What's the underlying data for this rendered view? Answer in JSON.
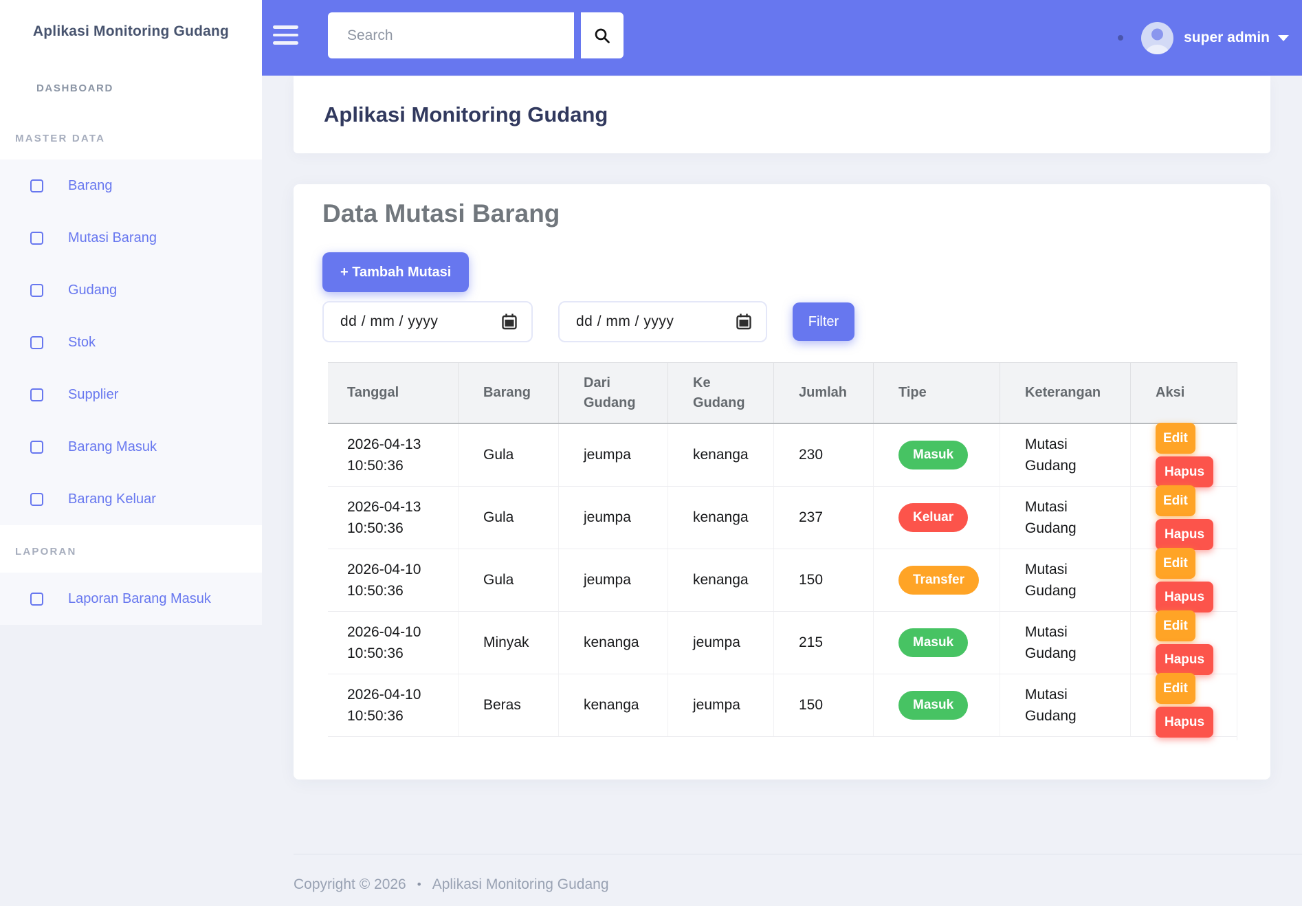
{
  "colors": {
    "primary": "#6777ef",
    "success": "#47c363",
    "danger": "#fc544b",
    "warning": "#ffa426"
  },
  "sidebar": {
    "brand": "Aplikasi Monitoring Gudang",
    "dashboard_label": "DASHBOARD",
    "sections": [
      {
        "label": "MASTER DATA",
        "items": [
          {
            "label": "Barang"
          },
          {
            "label": "Mutasi Barang"
          },
          {
            "label": "Gudang"
          },
          {
            "label": "Stok"
          },
          {
            "label": "Supplier"
          },
          {
            "label": "Barang Masuk"
          },
          {
            "label": "Barang Keluar"
          }
        ]
      },
      {
        "label": "LAPORAN",
        "items": [
          {
            "label": "Laporan Barang Masuk"
          }
        ]
      }
    ]
  },
  "topbar": {
    "search_placeholder": "Search",
    "user_name": "super admin"
  },
  "header": {
    "title": "Aplikasi Monitoring Gudang"
  },
  "main": {
    "title": "Data Mutasi Barang",
    "add_button": "+ Tambah Mutasi",
    "date_from": {
      "placeholder": "dd / mm / yyyy"
    },
    "date_to": {
      "placeholder": "dd / mm / yyyy"
    },
    "filter_button": "Filter",
    "table": {
      "columns": [
        "Tanggal",
        "Barang",
        "Dari Gudang",
        "Ke Gudang",
        "Jumlah",
        "Tipe",
        "Keterangan",
        "Aksi"
      ],
      "actions": {
        "edit": "Edit",
        "hapus": "Hapus"
      },
      "rows": [
        {
          "tanggal_date": "2026-04-13",
          "tanggal_time": "10:50:36",
          "barang": "Gula",
          "dari_gudang": "jeumpa",
          "ke_gudang": "kenanga",
          "jumlah": "230",
          "tipe": "Masuk",
          "tipe_color": "#47c363",
          "keterangan": "Mutasi Gudang"
        },
        {
          "tanggal_date": "2026-04-13",
          "tanggal_time": "10:50:36",
          "barang": "Gula",
          "dari_gudang": "jeumpa",
          "ke_gudang": "kenanga",
          "jumlah": "237",
          "tipe": "Keluar",
          "tipe_color": "#fc544b",
          "keterangan": "Mutasi Gudang"
        },
        {
          "tanggal_date": "2026-04-10",
          "tanggal_time": "10:50:36",
          "barang": "Gula",
          "dari_gudang": "jeumpa",
          "ke_gudang": "kenanga",
          "jumlah": "150",
          "tipe": "Transfer",
          "tipe_color": "#ffa426",
          "keterangan": "Mutasi Gudang"
        },
        {
          "tanggal_date": "2026-04-10",
          "tanggal_time": "10:50:36",
          "barang": "Minyak",
          "dari_gudang": "kenanga",
          "ke_gudang": "jeumpa",
          "jumlah": "215",
          "tipe": "Masuk",
          "tipe_color": "#47c363",
          "keterangan": "Mutasi Gudang"
        },
        {
          "tanggal_date": "2026-04-10",
          "tanggal_time": "10:50:36",
          "barang": "Beras",
          "dari_gudang": "kenanga",
          "ke_gudang": "jeumpa",
          "jumlah": "150",
          "tipe": "Masuk",
          "tipe_color": "#47c363",
          "keterangan": "Mutasi Gudang"
        }
      ]
    }
  },
  "footer": {
    "copyright": "Copyright © 2026",
    "bullet": "•",
    "app_name": "Aplikasi Monitoring Gudang"
  }
}
